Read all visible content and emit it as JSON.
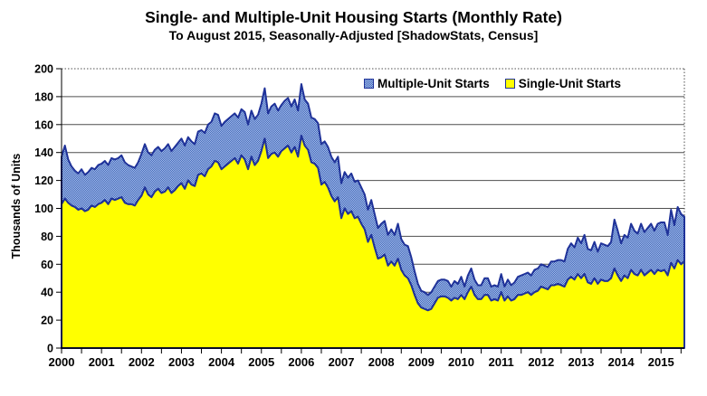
{
  "title": "Single- and Multiple-Unit Housing Starts (Monthly Rate)",
  "subtitle": "To August 2015, Seasonally-Adjusted [ShadowStats, Census]",
  "chart_data": {
    "type": "area",
    "stacked": true,
    "title": "Single- and Multiple-Unit Housing Starts (Monthly Rate)",
    "subtitle": "To August 2015, Seasonally-Adjusted [ShadowStats, Census]",
    "xlabel": "",
    "ylabel": "Thousands of Units",
    "ylim": [
      0,
      200
    ],
    "y_tick_step": 20,
    "x_start": "2000-01",
    "x_end": "2015-08",
    "x_frequency": "monthly",
    "x_tick_labels": [
      "2000",
      "2001",
      "2002",
      "2003",
      "2004",
      "2005",
      "2006",
      "2007",
      "2008",
      "2009",
      "2010",
      "2011",
      "2012",
      "2013",
      "2014",
      "2015"
    ],
    "grid": "horizontal",
    "legend_position": "top-inside",
    "legend": [
      {
        "label": "Multiple-Unit Starts",
        "swatch": "blue-hatch"
      },
      {
        "label": "Single-Unit Starts",
        "swatch": "yellow"
      }
    ],
    "colors": {
      "single_fill": "#ffff00",
      "multiple_hatch_dark": "#3f68bc",
      "multiple_hatch_light": "#aabee8",
      "series_border": "#1f3299",
      "gridline": "#4f4f4f",
      "axis": "#000000"
    },
    "series": [
      {
        "name": "Single-Unit Starts",
        "values": [
          103,
          107,
          104,
          102,
          101,
          99,
          100,
          98,
          99,
          102,
          101,
          103,
          104,
          106,
          103,
          107,
          106,
          107,
          108,
          104,
          103,
          103,
          102,
          106,
          109,
          115,
          110,
          108,
          112,
          114,
          111,
          112,
          115,
          111,
          113,
          116,
          118,
          114,
          120,
          117,
          116,
          124,
          125,
          123,
          128,
          130,
          134,
          133,
          128,
          130,
          132,
          134,
          136,
          132,
          138,
          135,
          128,
          137,
          131,
          134,
          141,
          150,
          136,
          139,
          140,
          137,
          141,
          143,
          145,
          140,
          144,
          137,
          152,
          145,
          142,
          133,
          132,
          129,
          117,
          119,
          115,
          109,
          105,
          108,
          93,
          100,
          96,
          98,
          93,
          94,
          89,
          85,
          76,
          81,
          72,
          64,
          65,
          67,
          59,
          62,
          59,
          64,
          56,
          52,
          50,
          45,
          38,
          32,
          29,
          28,
          27,
          28,
          32,
          36,
          37,
          37,
          36,
          34,
          36,
          35,
          38,
          35,
          40,
          44,
          38,
          35,
          35,
          38,
          38,
          34,
          35,
          34,
          40,
          34,
          37,
          34,
          35,
          38,
          38,
          39,
          40,
          38,
          40,
          41,
          44,
          43,
          42,
          45,
          45,
          46,
          45,
          44,
          49,
          51,
          49,
          53,
          50,
          53,
          47,
          46,
          50,
          46,
          49,
          48,
          48,
          50,
          57,
          52,
          48,
          52,
          50,
          56,
          53,
          52,
          56,
          52,
          54,
          56,
          53,
          56,
          55,
          56,
          52,
          61,
          57,
          63,
          60,
          62
        ]
      },
      {
        "name": "Multiple-Unit Starts",
        "values": [
          34,
          38,
          31,
          28,
          26,
          26,
          28,
          26,
          27,
          27,
          27,
          28,
          28,
          28,
          28,
          29,
          29,
          29,
          30,
          29,
          28,
          27,
          27,
          27,
          30,
          31,
          30,
          30,
          30,
          30,
          30,
          31,
          31,
          30,
          31,
          31,
          32,
          31,
          31,
          31,
          30,
          31,
          31,
          31,
          32,
          32,
          34,
          34,
          31,
          32,
          32,
          32,
          32,
          33,
          33,
          34,
          32,
          33,
          33,
          33,
          34,
          36,
          32,
          34,
          35,
          33,
          33,
          34,
          34,
          33,
          34,
          33,
          37,
          33,
          33,
          32,
          32,
          32,
          29,
          29,
          29,
          28,
          28,
          29,
          25,
          26,
          26,
          27,
          26,
          26,
          26,
          25,
          23,
          25,
          24,
          22,
          24,
          24,
          22,
          23,
          22,
          25,
          22,
          22,
          23,
          20,
          17,
          14,
          12,
          12,
          11,
          12,
          12,
          12,
          12,
          12,
          12,
          10,
          12,
          11,
          13,
          9,
          12,
          13,
          11,
          10,
          10,
          12,
          12,
          10,
          10,
          10,
          13,
          10,
          12,
          11,
          12,
          13,
          14,
          14,
          14,
          14,
          16,
          16,
          16,
          16,
          16,
          17,
          17,
          17,
          18,
          18,
          22,
          24,
          23,
          26,
          25,
          28,
          24,
          24,
          26,
          23,
          26,
          26,
          25,
          26,
          35,
          32,
          27,
          29,
          29,
          33,
          31,
          30,
          33,
          31,
          32,
          33,
          31,
          33,
          35,
          34,
          29,
          38,
          31,
          38,
          36,
          32
        ]
      }
    ]
  }
}
